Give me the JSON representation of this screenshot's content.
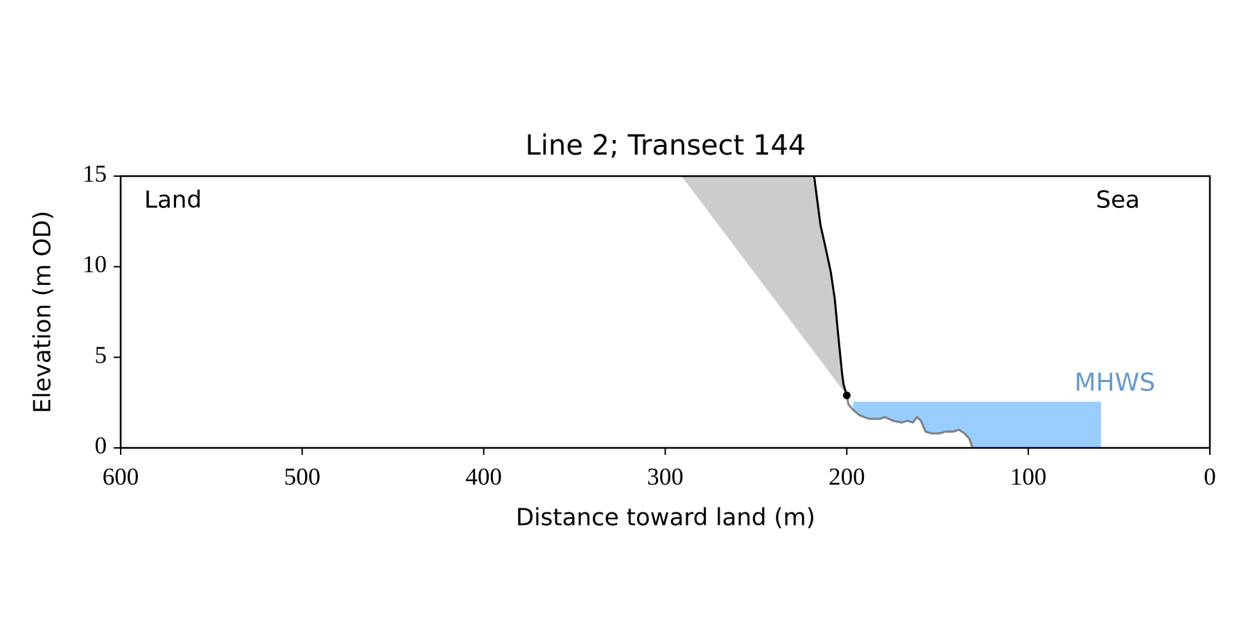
{
  "chart_data": {
    "type": "line",
    "title": "Line 2; Transect 144",
    "xlabel": "Distance toward land (m)",
    "ylabel": "Elevation (m OD)",
    "xlim": [
      600,
      0
    ],
    "ylim": [
      0,
      15
    ],
    "xticks": [
      600,
      500,
      400,
      300,
      200,
      100,
      0
    ],
    "yticks": [
      0,
      5,
      10,
      15
    ],
    "annotations": [
      "Land",
      "Sea"
    ],
    "shade": {
      "color": "#cccccc",
      "x": [
        291,
        200
      ],
      "values": [
        15,
        2.9
      ]
    },
    "series": [
      {
        "color": "#000000",
        "x": [
          218,
          214.5,
          211.8,
          208.8,
          206.6,
          204.8,
          202.6,
          201.8,
          200
        ],
        "values": [
          15,
          12.3,
          11.1,
          9.7,
          8.2,
          6.3,
          4.1,
          3.5,
          2.9
        ]
      },
      {
        "color": "#808080",
        "x": [
          200,
          199.1,
          196.5,
          193,
          187.7,
          182,
          179,
          174.6,
          169.7,
          166.7,
          163.6,
          161.4,
          159.2,
          156.6,
          153.5,
          149.1,
          145.6,
          141.2,
          138.2,
          135.1,
          132.5,
          130.7
        ],
        "values": [
          2.9,
          2.4,
          2.1,
          1.8,
          1.6,
          1.6,
          1.7,
          1.5,
          1.4,
          1.5,
          1.4,
          1.7,
          1.5,
          0.9,
          0.8,
          0.8,
          0.9,
          0.9,
          1.0,
          0.8,
          0.5,
          0
        ]
      }
    ],
    "marker": {
      "x": 200,
      "y": 2.9,
      "color": "#000000"
    },
    "mhws": {
      "label": "MHWS",
      "level": 2.55,
      "x": [
        196.5,
        60
      ],
      "color": "#99ccff",
      "label_color": "#6699cc"
    }
  }
}
